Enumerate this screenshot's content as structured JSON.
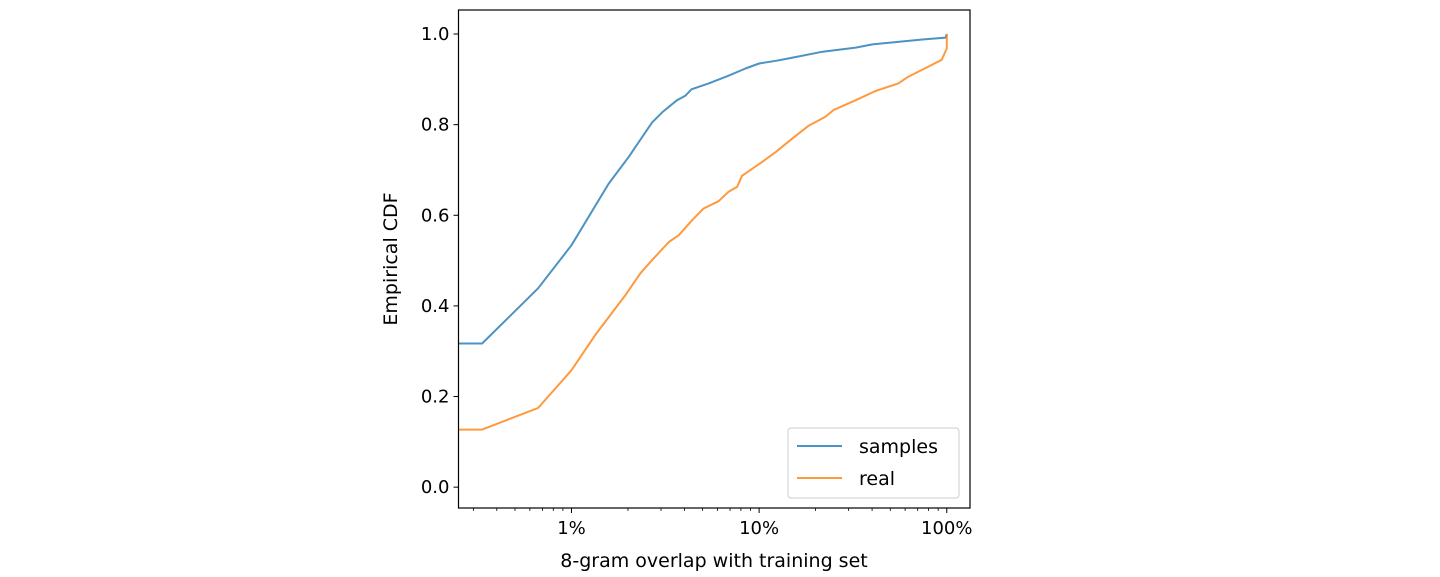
{
  "chart_data": {
    "type": "line",
    "title": "",
    "xlabel": "8-gram overlap with training set",
    "ylabel": "Empirical CDF",
    "xscale": "log",
    "x_unit": "percent",
    "xlim": [
      0.25,
      133
    ],
    "ylim": [
      -0.046,
      1.053
    ],
    "grid": false,
    "legend_position": "lower right",
    "x_ticks": [
      {
        "value": 1,
        "label": "1%"
      },
      {
        "value": 10,
        "label": "10%"
      },
      {
        "value": 100,
        "label": "100%"
      }
    ],
    "y_ticks": [
      {
        "value": 0.0,
        "label": "0.0"
      },
      {
        "value": 0.2,
        "label": "0.2"
      },
      {
        "value": 0.4,
        "label": "0.4"
      },
      {
        "value": 0.6,
        "label": "0.6"
      },
      {
        "value": 0.8,
        "label": "0.8"
      },
      {
        "value": 1.0,
        "label": "1.0"
      }
    ],
    "series": [
      {
        "name": "samples",
        "color": "#1f77b4",
        "x": [
          0.25,
          0.334,
          0.665,
          1.0,
          1.58,
          2.02,
          2.69,
          3.04,
          3.65,
          4.05,
          4.36,
          5.38,
          6.88,
          8.45,
          10.0,
          12.3,
          15.1,
          21.8,
          32.7,
          40.2,
          74.2,
          98.7,
          100
        ],
        "y": [
          0.317,
          0.317,
          0.439,
          0.534,
          0.67,
          0.729,
          0.805,
          0.827,
          0.854,
          0.864,
          0.878,
          0.891,
          0.908,
          0.924,
          0.935,
          0.941,
          0.948,
          0.961,
          0.97,
          0.977,
          0.988,
          0.992,
          1.0
        ]
      },
      {
        "name": "real",
        "color": "#ff7f0e",
        "x": [
          0.25,
          0.334,
          0.665,
          1.0,
          1.34,
          1.94,
          2.33,
          2.69,
          3.3,
          3.73,
          4.39,
          5.06,
          6.08,
          6.88,
          7.64,
          8.11,
          10.4,
          12.3,
          15.1,
          18.4,
          22.5,
          24.9,
          32.7,
          41.6,
          55.2,
          62.5,
          79.8,
          94.0,
          100,
          100
        ],
        "y": [
          0.127,
          0.127,
          0.175,
          0.258,
          0.336,
          0.424,
          0.472,
          0.501,
          0.541,
          0.556,
          0.589,
          0.615,
          0.631,
          0.652,
          0.663,
          0.687,
          0.718,
          0.74,
          0.77,
          0.798,
          0.817,
          0.832,
          0.854,
          0.874,
          0.891,
          0.906,
          0.928,
          0.943,
          0.968,
          1.0
        ]
      }
    ]
  }
}
